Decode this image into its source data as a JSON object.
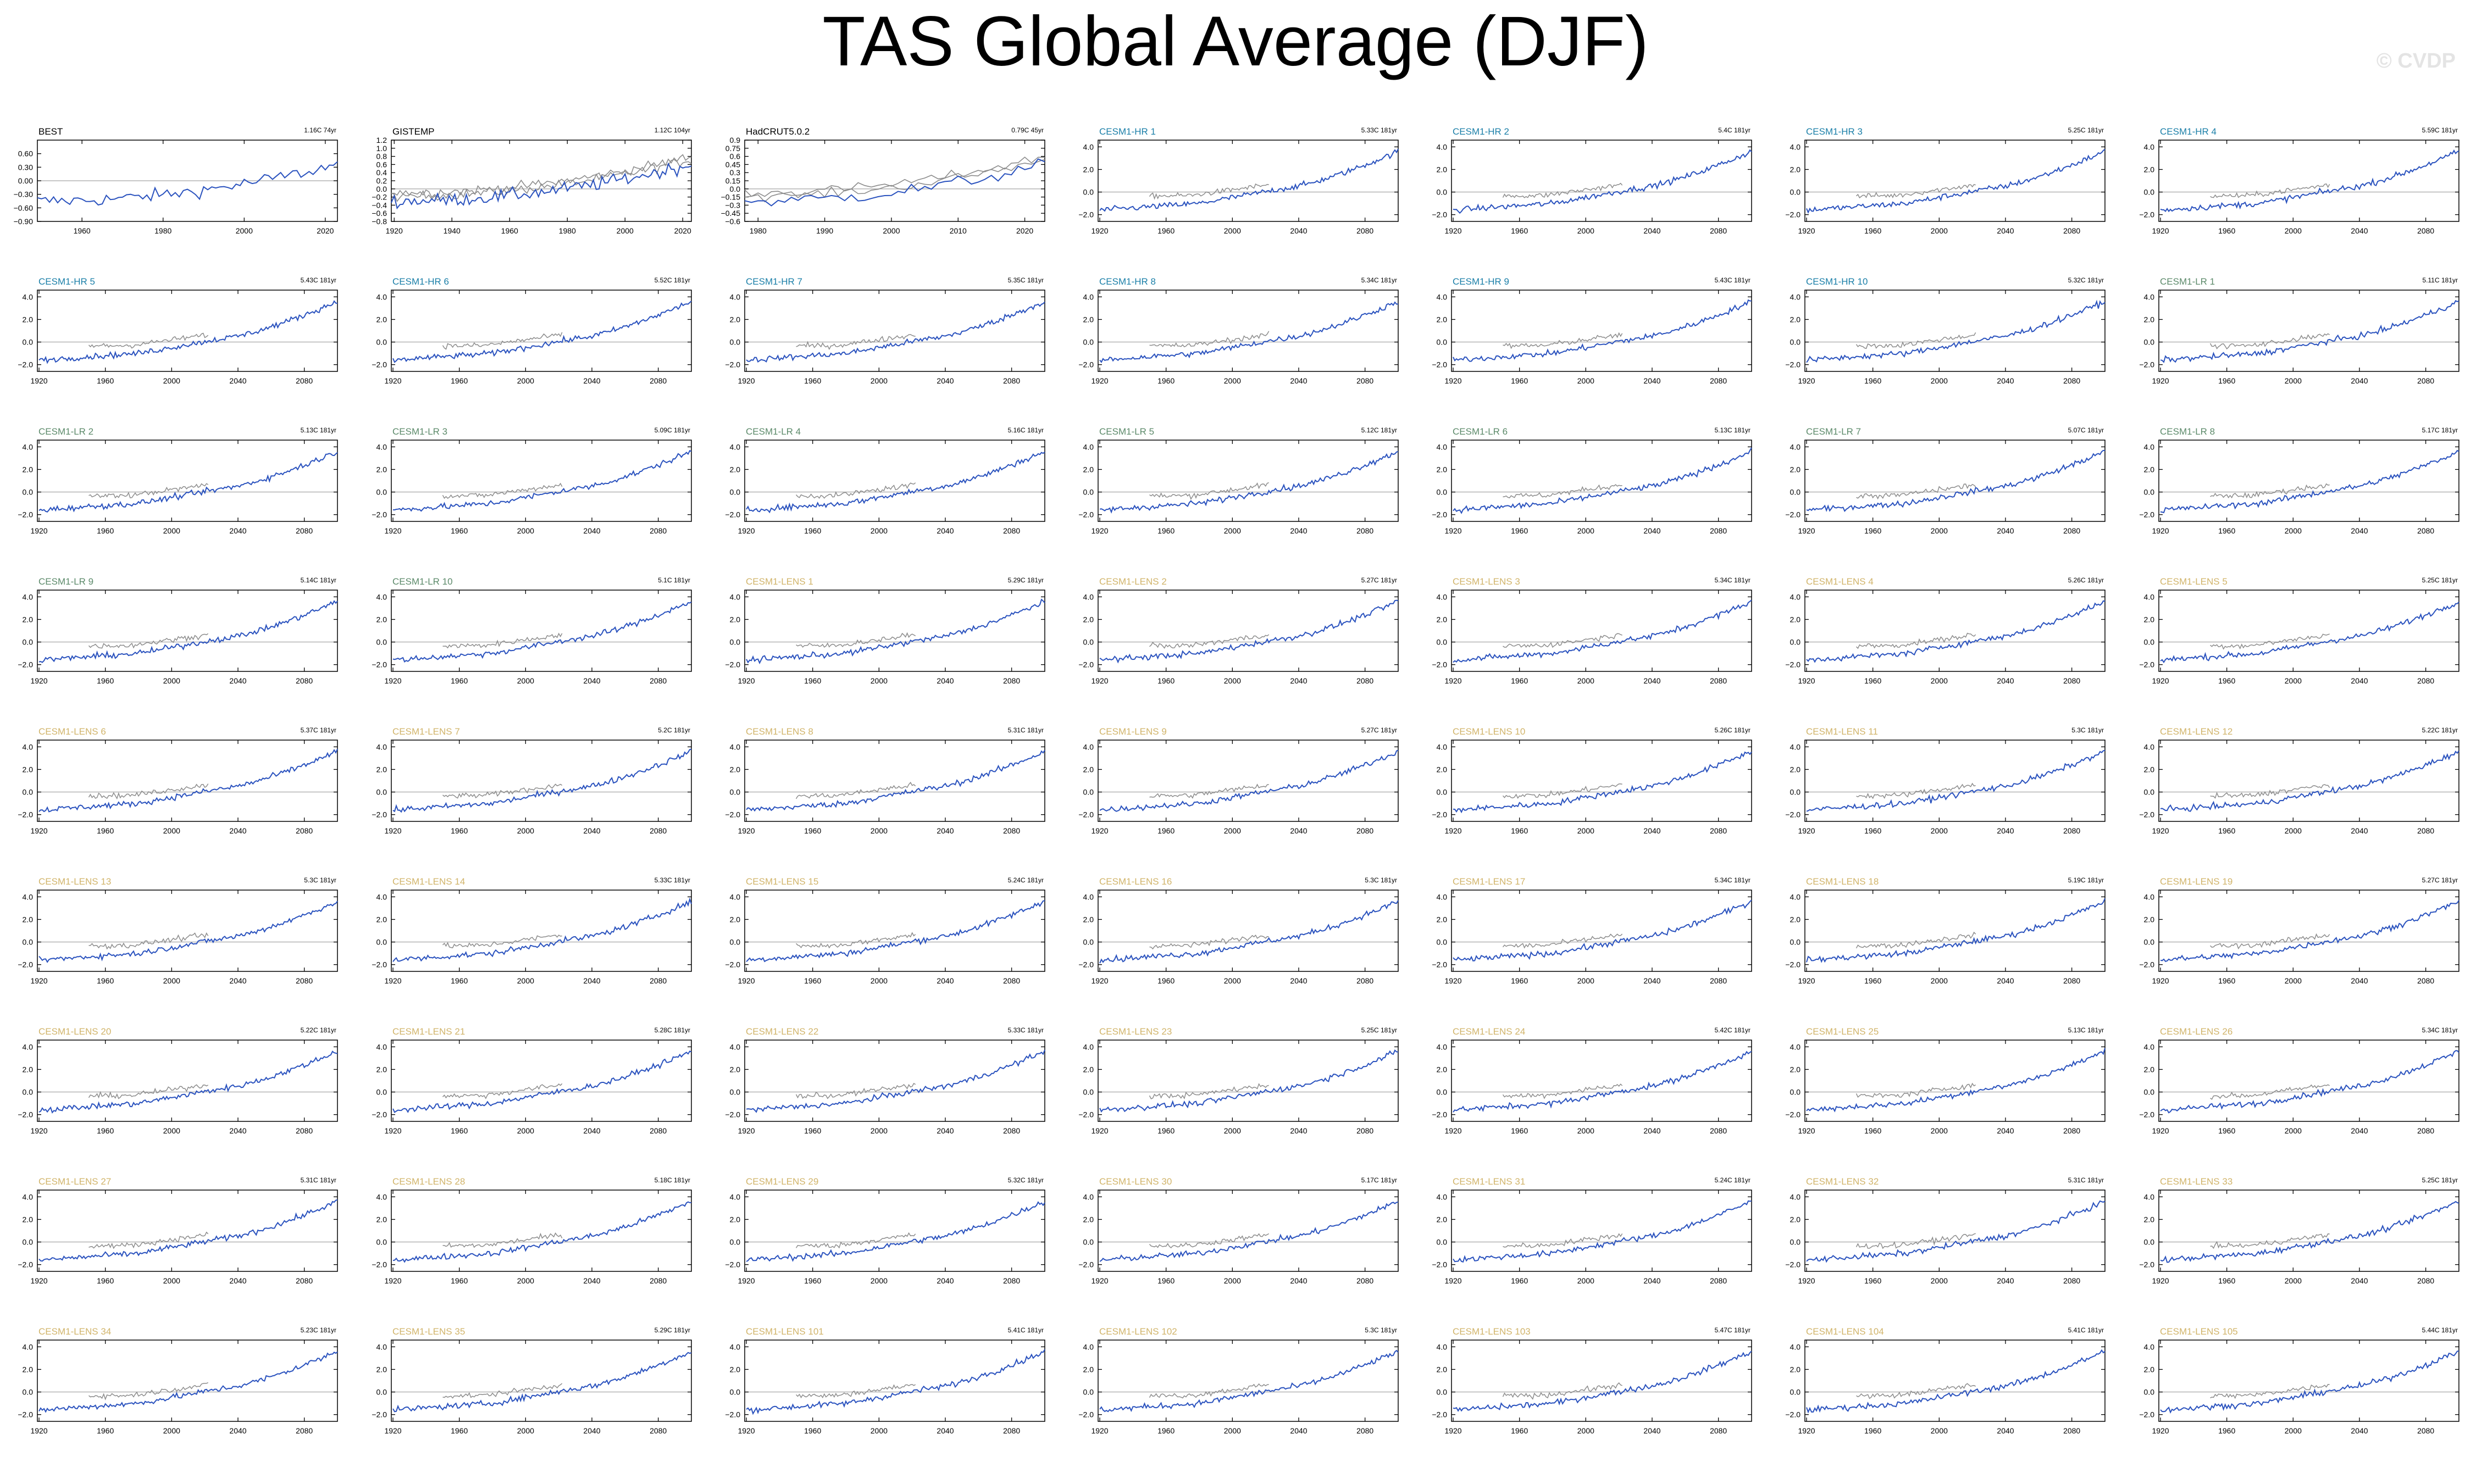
{
  "title": "TAS Global Average (DJF)",
  "watermark": "© CVDP",
  "colors": {
    "model_line": "#2a52be",
    "obs_line": "#8c8c8c",
    "title_cesm1_hr": "#1b7fa8",
    "title_cesm1_lr": "#5c8a6a",
    "title_cesm1_lens": "#d1b46a",
    "title_obs": "#000000",
    "zero_line": "#b4b4b4",
    "axis": "#000000"
  },
  "chart_data": [
    {
      "type": "line",
      "title": "BEST",
      "stat": "1.16C 74yr",
      "title_group": "obs",
      "xlim": [
        1949,
        2023
      ],
      "ylim": [
        -0.9,
        0.9
      ],
      "xticks": [
        1960,
        1980,
        2000,
        2020
      ],
      "yticks": [
        -0.9,
        -0.6,
        -0.3,
        0.0,
        0.3,
        0.6
      ],
      "yticklabels": [
        "−0.90",
        "−0.60",
        "−0.30",
        "0.00",
        "0.30",
        "0.60"
      ],
      "series": [
        {
          "values_estimated": "annual DJF anomaly, rising from about −0.35 (1950s) to about 0.65 (2020s), peak ≈0.85 near 2016"
        }
      ]
    },
    {
      "type": "line",
      "title": "GISTEMP",
      "stat": "1.12C 104yr",
      "title_group": "obs",
      "xlim": [
        1919,
        2023
      ],
      "ylim": [
        -0.8,
        1.2
      ],
      "xticks": [
        1920,
        1940,
        1960,
        1980,
        2000,
        2020
      ],
      "yticks": [
        -0.8,
        -0.6,
        -0.4,
        -0.2,
        0.0,
        0.2,
        0.4,
        0.6,
        0.8,
        1.0,
        1.2
      ],
      "yticklabels": [
        "−0.8",
        "−0.6",
        "−0.4",
        "−0.2",
        "0.0",
        "0.2",
        "0.4",
        "0.6",
        "0.8",
        "1.0",
        "1.2"
      ],
      "series": [
        {
          "values_estimated": "anomaly about −0.4 in 1920s, about 0 in 1960s, rising to about 0.7 by 2020"
        }
      ]
    },
    {
      "type": "line",
      "title": "HadCRUT5.0.2",
      "stat": "0.79C 45yr",
      "title_group": "obs",
      "xlim": [
        1978,
        2023
      ],
      "ylim": [
        -0.6,
        0.9
      ],
      "xticks": [
        1980,
        1990,
        2000,
        2010,
        2020
      ],
      "yticks": [
        -0.6,
        -0.45,
        -0.3,
        -0.15,
        0.0,
        0.15,
        0.3,
        0.45,
        0.6,
        0.75,
        0.9
      ],
      "yticklabels": [
        "−0.6",
        "−0.45",
        "−0.3",
        "−0.15",
        "0.0",
        "0.15",
        "0.3",
        "0.45",
        "0.6",
        "0.75",
        "0.9"
      ],
      "series": [
        {
          "values_estimated": "anomaly about −0.25 in 1980, about 0.35 by 2020"
        }
      ]
    },
    {
      "type": "line",
      "title": "CESM1-HR 1",
      "stat": "5.33C 181yr",
      "title_group": "hr"
    },
    {
      "type": "line",
      "title": "CESM1-HR 2",
      "stat": "5.4C 181yr",
      "title_group": "hr"
    },
    {
      "type": "line",
      "title": "CESM1-HR 3",
      "stat": "5.25C 181yr",
      "title_group": "hr"
    },
    {
      "type": "line",
      "title": "CESM1-HR 4",
      "stat": "5.59C 181yr",
      "title_group": "hr"
    },
    {
      "type": "line",
      "title": "CESM1-HR 5",
      "stat": "5.43C 181yr",
      "title_group": "hr"
    },
    {
      "type": "line",
      "title": "CESM1-HR 6",
      "stat": "5.52C 181yr",
      "title_group": "hr"
    },
    {
      "type": "line",
      "title": "CESM1-HR 7",
      "stat": "5.35C 181yr",
      "title_group": "hr"
    },
    {
      "type": "line",
      "title": "CESM1-HR 8",
      "stat": "5.34C 181yr",
      "title_group": "hr"
    },
    {
      "type": "line",
      "title": "CESM1-HR 9",
      "stat": "5.43C 181yr",
      "title_group": "hr"
    },
    {
      "type": "line",
      "title": "CESM1-HR 10",
      "stat": "5.32C 181yr",
      "title_group": "hr"
    },
    {
      "type": "line",
      "title": "CESM1-LR 1",
      "stat": "5.11C 181yr",
      "title_group": "lr"
    },
    {
      "type": "line",
      "title": "CESM1-LR 2",
      "stat": "5.13C 181yr",
      "title_group": "lr"
    },
    {
      "type": "line",
      "title": "CESM1-LR 3",
      "stat": "5.09C 181yr",
      "title_group": "lr"
    },
    {
      "type": "line",
      "title": "CESM1-LR 4",
      "stat": "5.16C 181yr",
      "title_group": "lr"
    },
    {
      "type": "line",
      "title": "CESM1-LR 5",
      "stat": "5.12C 181yr",
      "title_group": "lr"
    },
    {
      "type": "line",
      "title": "CESM1-LR 6",
      "stat": "5.13C 181yr",
      "title_group": "lr"
    },
    {
      "type": "line",
      "title": "CESM1-LR 7",
      "stat": "5.07C 181yr",
      "title_group": "lr"
    },
    {
      "type": "line",
      "title": "CESM1-LR 8",
      "stat": "5.17C 181yr",
      "title_group": "lr"
    },
    {
      "type": "line",
      "title": "CESM1-LR 9",
      "stat": "5.14C 181yr",
      "title_group": "lr"
    },
    {
      "type": "line",
      "title": "CESM1-LR 10",
      "stat": "5.1C 181yr",
      "title_group": "lr"
    },
    {
      "type": "line",
      "title": "CESM1-LENS 1",
      "stat": "5.29C 181yr",
      "title_group": "lens"
    },
    {
      "type": "line",
      "title": "CESM1-LENS 2",
      "stat": "5.27C 181yr",
      "title_group": "lens"
    },
    {
      "type": "line",
      "title": "CESM1-LENS 3",
      "stat": "5.34C 181yr",
      "title_group": "lens"
    },
    {
      "type": "line",
      "title": "CESM1-LENS 4",
      "stat": "5.26C 181yr",
      "title_group": "lens"
    },
    {
      "type": "line",
      "title": "CESM1-LENS 5",
      "stat": "5.25C 181yr",
      "title_group": "lens"
    },
    {
      "type": "line",
      "title": "CESM1-LENS 6",
      "stat": "5.37C 181yr",
      "title_group": "lens"
    },
    {
      "type": "line",
      "title": "CESM1-LENS 7",
      "stat": "5.2C 181yr",
      "title_group": "lens"
    },
    {
      "type": "line",
      "title": "CESM1-LENS 8",
      "stat": "5.31C 181yr",
      "title_group": "lens"
    },
    {
      "type": "line",
      "title": "CESM1-LENS 9",
      "stat": "5.27C 181yr",
      "title_group": "lens"
    },
    {
      "type": "line",
      "title": "CESM1-LENS 10",
      "stat": "5.26C 181yr",
      "title_group": "lens"
    },
    {
      "type": "line",
      "title": "CESM1-LENS 11",
      "stat": "5.3C 181yr",
      "title_group": "lens"
    },
    {
      "type": "line",
      "title": "CESM1-LENS 12",
      "stat": "5.22C 181yr",
      "title_group": "lens"
    },
    {
      "type": "line",
      "title": "CESM1-LENS 13",
      "stat": "5.3C 181yr",
      "title_group": "lens"
    },
    {
      "type": "line",
      "title": "CESM1-LENS 14",
      "stat": "5.33C 181yr",
      "title_group": "lens"
    },
    {
      "type": "line",
      "title": "CESM1-LENS 15",
      "stat": "5.24C 181yr",
      "title_group": "lens"
    },
    {
      "type": "line",
      "title": "CESM1-LENS 16",
      "stat": "5.3C 181yr",
      "title_group": "lens"
    },
    {
      "type": "line",
      "title": "CESM1-LENS 17",
      "stat": "5.34C 181yr",
      "title_group": "lens"
    },
    {
      "type": "line",
      "title": "CESM1-LENS 18",
      "stat": "5.19C 181yr",
      "title_group": "lens"
    },
    {
      "type": "line",
      "title": "CESM1-LENS 19",
      "stat": "5.27C 181yr",
      "title_group": "lens"
    },
    {
      "type": "line",
      "title": "CESM1-LENS 20",
      "stat": "5.22C 181yr",
      "title_group": "lens"
    },
    {
      "type": "line",
      "title": "CESM1-LENS 21",
      "stat": "5.28C 181yr",
      "title_group": "lens"
    },
    {
      "type": "line",
      "title": "CESM1-LENS 22",
      "stat": "5.33C 181yr",
      "title_group": "lens"
    },
    {
      "type": "line",
      "title": "CESM1-LENS 23",
      "stat": "5.25C 181yr",
      "title_group": "lens"
    },
    {
      "type": "line",
      "title": "CESM1-LENS 24",
      "stat": "5.42C 181yr",
      "title_group": "lens"
    },
    {
      "type": "line",
      "title": "CESM1-LENS 25",
      "stat": "5.13C 181yr",
      "title_group": "lens"
    },
    {
      "type": "line",
      "title": "CESM1-LENS 26",
      "stat": "5.34C 181yr",
      "title_group": "lens"
    },
    {
      "type": "line",
      "title": "CESM1-LENS 27",
      "stat": "5.31C 181yr",
      "title_group": "lens"
    },
    {
      "type": "line",
      "title": "CESM1-LENS 28",
      "stat": "5.18C 181yr",
      "title_group": "lens"
    },
    {
      "type": "line",
      "title": "CESM1-LENS 29",
      "stat": "5.32C 181yr",
      "title_group": "lens"
    },
    {
      "type": "line",
      "title": "CESM1-LENS 30",
      "stat": "5.17C 181yr",
      "title_group": "lens"
    },
    {
      "type": "line",
      "title": "CESM1-LENS 31",
      "stat": "5.24C 181yr",
      "title_group": "lens"
    },
    {
      "type": "line",
      "title": "CESM1-LENS 32",
      "stat": "5.31C 181yr",
      "title_group": "lens"
    },
    {
      "type": "line",
      "title": "CESM1-LENS 33",
      "stat": "5.25C 181yr",
      "title_group": "lens"
    },
    {
      "type": "line",
      "title": "CESM1-LENS 34",
      "stat": "5.23C 181yr",
      "title_group": "lens"
    },
    {
      "type": "line",
      "title": "CESM1-LENS 35",
      "stat": "5.29C 181yr",
      "title_group": "lens"
    },
    {
      "type": "line",
      "title": "CESM1-LENS 101",
      "stat": "5.41C 181yr",
      "title_group": "lens"
    },
    {
      "type": "line",
      "title": "CESM1-LENS 102",
      "stat": "5.3C 181yr",
      "title_group": "lens"
    },
    {
      "type": "line",
      "title": "CESM1-LENS 103",
      "stat": "5.47C 181yr",
      "title_group": "lens"
    },
    {
      "type": "line",
      "title": "CESM1-LENS 104",
      "stat": "5.41C 181yr",
      "title_group": "lens"
    },
    {
      "type": "line",
      "title": "CESM1-LENS 105",
      "stat": "5.44C 181yr",
      "title_group": "lens"
    }
  ],
  "model_panel_axes": {
    "xlim": [
      1919,
      2100
    ],
    "ylim": [
      -2.6,
      4.6
    ],
    "xticks": [
      1920,
      1960,
      2000,
      2040,
      2080
    ],
    "yticks": [
      -2.0,
      0.0,
      2.0,
      4.0
    ],
    "yticklabels": [
      "−2.0",
      "0.0",
      "2.0",
      "4.0"
    ],
    "model_series_estimated": "DJF global mean anomaly about −1.6 in 1920, −1.0 in 1980, 0.3 in 2030, 2.0 in 2060, 3.6 in 2100",
    "obs_overlay_estimated": "observational anomalies (grey) from 1950 to 2022 near −0.4 to 0.8"
  }
}
